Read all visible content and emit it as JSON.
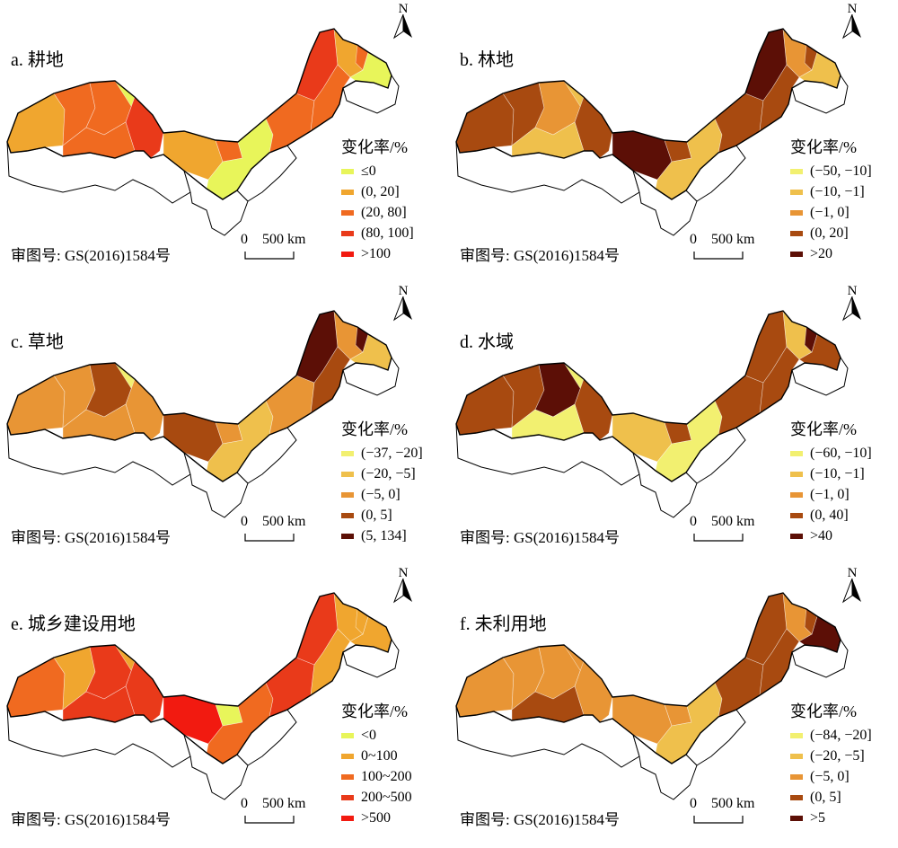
{
  "panels": [
    {
      "title": "a. 耕地",
      "legend_title": "变化率/%",
      "legend": [
        {
          "label": "≤0",
          "color": "#e8f55a"
        },
        {
          "label": "(0, 20]",
          "color": "#f0a62f"
        },
        {
          "label": "(20, 80]",
          "color": "#f06a20"
        },
        {
          "label": "(80, 100]",
          "color": "#e93a1a"
        },
        {
          "label": ">100",
          "color": "#f21a10"
        }
      ],
      "fills": [
        1,
        2,
        2,
        0,
        3,
        2,
        1,
        2,
        0,
        2,
        3,
        1,
        2,
        0,
        2
      ]
    },
    {
      "title": "b. 林地",
      "legend_title": "变化率/%",
      "legend": [
        {
          "label": "(−50, −10]",
          "color": "#f2f070"
        },
        {
          "label": "(−10, −1]",
          "color": "#efc04c"
        },
        {
          "label": "(−1, 0]",
          "color": "#e89535"
        },
        {
          "label": "(0, 20]",
          "color": "#a84a10"
        },
        {
          "label": ">20",
          "color": "#5c0f06"
        }
      ],
      "fills": [
        3,
        3,
        2,
        1,
        3,
        1,
        4,
        3,
        1,
        3,
        4,
        2,
        3,
        1,
        3
      ]
    },
    {
      "title": "c. 草地",
      "legend_title": "变化率/%",
      "legend": [
        {
          "label": "(−37, −20]",
          "color": "#f2f070"
        },
        {
          "label": "(−20, −5]",
          "color": "#efc04c"
        },
        {
          "label": "(−5, 0]",
          "color": "#e89535"
        },
        {
          "label": "(0, 5]",
          "color": "#a84a10"
        },
        {
          "label": "(5, 134]",
          "color": "#5c0f06"
        }
      ],
      "fills": [
        2,
        2,
        3,
        0,
        2,
        2,
        3,
        2,
        1,
        2,
        4,
        2,
        3,
        1,
        4
      ]
    },
    {
      "title": "d. 水域",
      "legend_title": "变化率/%",
      "legend": [
        {
          "label": "(−60, −10]",
          "color": "#f2f070"
        },
        {
          "label": "(−10, −1]",
          "color": "#efc04c"
        },
        {
          "label": "(−1, 0]",
          "color": "#e89535"
        },
        {
          "label": "(0, 40]",
          "color": "#a84a10"
        },
        {
          "label": ">40",
          "color": "#5c0f06"
        }
      ],
      "fills": [
        3,
        3,
        4,
        0,
        3,
        0,
        1,
        3,
        0,
        3,
        3,
        1,
        3,
        3,
        4
      ]
    },
    {
      "title": "e. 城乡建设用地",
      "legend_title": "变化率/%",
      "legend": [
        {
          "label": "<0",
          "color": "#e8f55a"
        },
        {
          "label": "0~100",
          "color": "#f0a62f"
        },
        {
          "label": "100~200",
          "color": "#f06a20"
        },
        {
          "label": "200~500",
          "color": "#e93a1a"
        },
        {
          "label": ">500",
          "color": "#f21a10"
        }
      ],
      "fills": [
        2,
        1,
        3,
        1,
        3,
        3,
        4,
        0,
        2,
        3,
        3,
        1,
        1,
        1,
        1
      ]
    },
    {
      "title": "f. 未利用地",
      "legend_title": "变化率/%",
      "legend": [
        {
          "label": "(−84, −20]",
          "color": "#f2f070"
        },
        {
          "label": "(−20, −5]",
          "color": "#efc04c"
        },
        {
          "label": "(−5, 0]",
          "color": "#e89535"
        },
        {
          "label": "(0, 5]",
          "color": "#a84a10"
        },
        {
          "label": ">5",
          "color": "#5c0f06"
        }
      ],
      "fills": [
        2,
        2,
        2,
        2,
        2,
        3,
        2,
        2,
        1,
        3,
        3,
        2,
        3,
        4,
        3
      ]
    }
  ],
  "review_number": "审图号: GS(2016)1584号",
  "scale_bar": {
    "zero": "0",
    "distance": "500 km"
  },
  "north_letter": "N"
}
